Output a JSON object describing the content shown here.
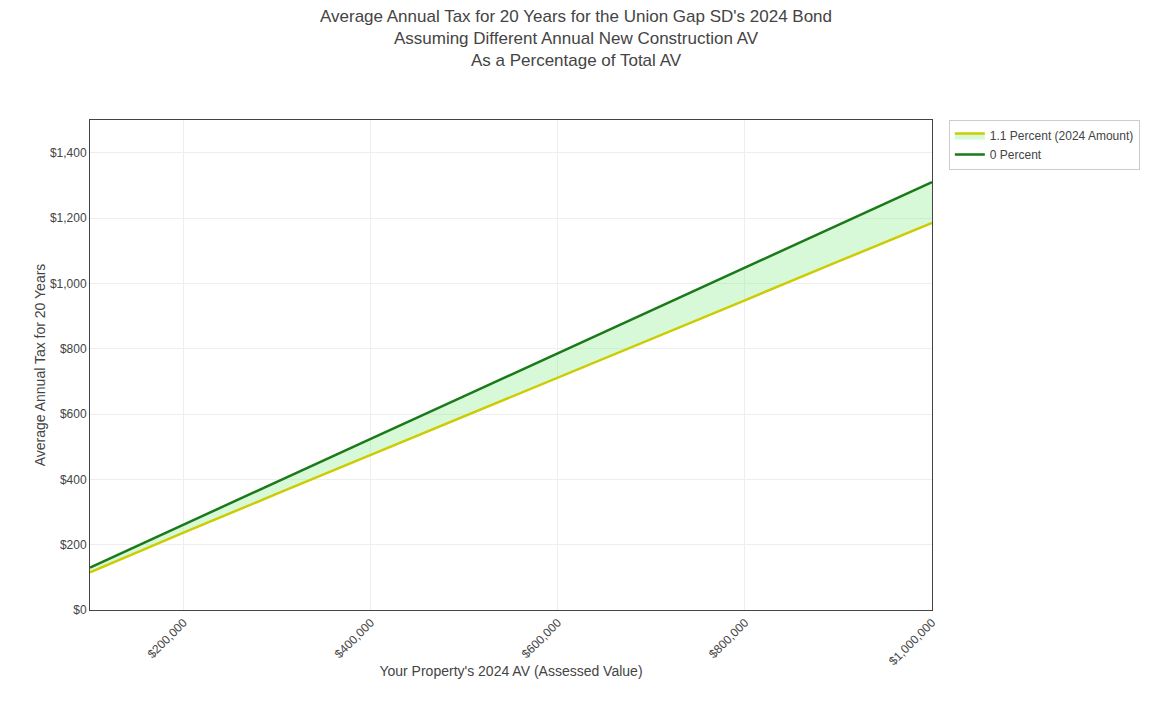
{
  "chart_data": {
    "type": "line",
    "title": "Average Annual Tax for 20 Years for the Union Gap SD's 2024 Bond\nAssuming Different Annual New Construction AV\nAs a Percentage of Total AV",
    "xlabel": "Your Property's 2024 AV (Assessed Value)",
    "ylabel": "Average Annual Tax for 20 Years",
    "x": [
      100000,
      200000,
      300000,
      400000,
      500000,
      600000,
      700000,
      800000,
      900000,
      1000000
    ],
    "series": [
      {
        "name": "0 Percent",
        "color": "#1a7a1a",
        "values": [
          130,
          262,
          393,
          524,
          655,
          786,
          917,
          1048,
          1179,
          1310
        ]
      },
      {
        "name": "1.1 Percent (2024 Amount)",
        "color": "#cccc00",
        "values": [
          115,
          237,
          356,
          474,
          593,
          712,
          830,
          948,
          1067,
          1185
        ]
      }
    ],
    "color": "#90ee90",
    "xlim": [
      100000,
      1000000
    ],
    "xticks": [
      {
        "value": 200000,
        "label": "$200,000"
      },
      {
        "value": 400000,
        "label": "$400,000"
      },
      {
        "value": 600000,
        "label": "$600,000"
      },
      {
        "value": 800000,
        "label": "$800,000"
      },
      {
        "value": 1000000,
        "label": "$1,000,000"
      }
    ],
    "ylim": [
      0,
      1500
    ],
    "yticks": [
      {
        "value": 0,
        "label": "$0"
      },
      {
        "value": 200,
        "label": "$200"
      },
      {
        "value": 400,
        "label": "$400"
      },
      {
        "value": 600,
        "label": "$600"
      },
      {
        "value": 800,
        "label": "$800"
      },
      {
        "value": 1000,
        "label": "$1,000"
      },
      {
        "value": 1200,
        "label": "$1,200"
      },
      {
        "value": 1400,
        "label": "$1,400"
      }
    ],
    "grid": true,
    "legend": "upper right"
  }
}
